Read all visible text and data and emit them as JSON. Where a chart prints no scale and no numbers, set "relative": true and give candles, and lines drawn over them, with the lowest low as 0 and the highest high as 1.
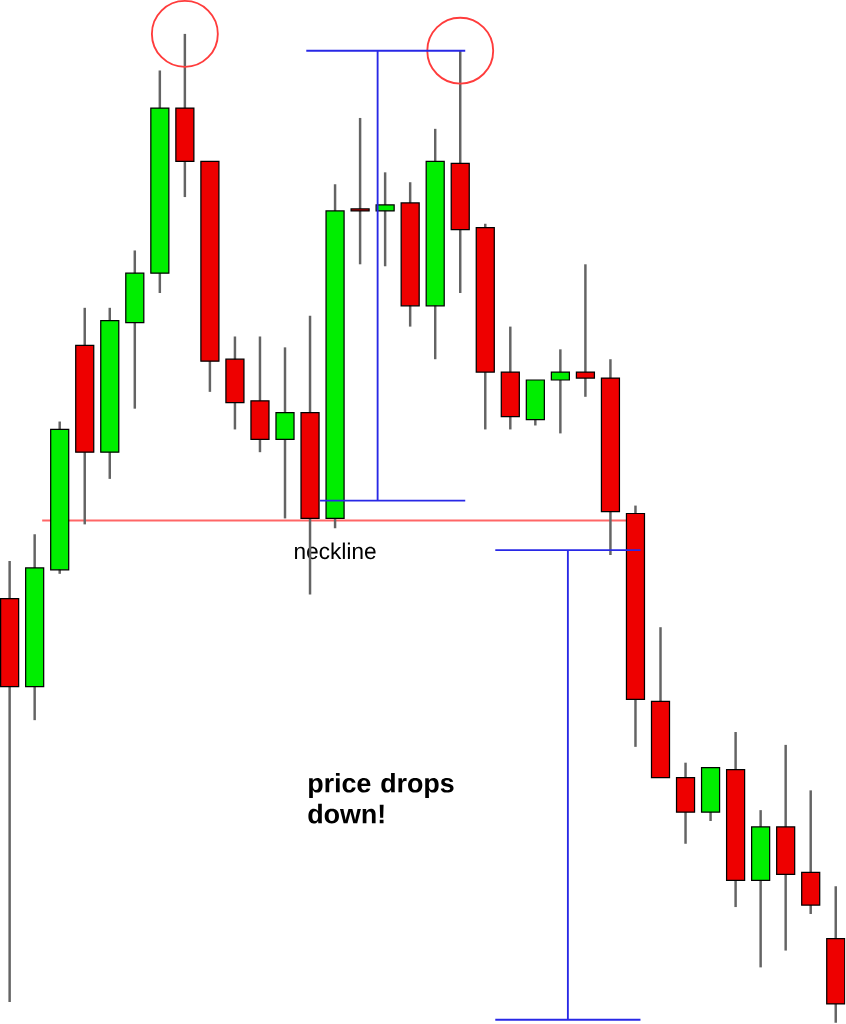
{
  "chart_data": {
    "type": "candlestick",
    "relative": true,
    "categories": [
      null,
      null,
      null,
      null,
      null,
      null,
      null,
      null,
      null,
      null,
      null,
      null,
      null,
      null,
      null,
      null,
      null,
      null,
      null,
      null,
      null,
      null,
      null,
      null,
      null,
      null,
      null,
      null,
      null,
      null,
      null,
      null,
      null,
      null
    ],
    "ohlc": [
      [
        0.429,
        0.467,
        0.021,
        0.34
      ],
      [
        0.34,
        0.494,
        0.306,
        0.46
      ],
      [
        0.458,
        0.608,
        0.454,
        0.6
      ],
      [
        0.685,
        0.723,
        0.504,
        0.577
      ],
      [
        0.577,
        0.723,
        0.55,
        0.71
      ],
      [
        0.708,
        0.781,
        0.621,
        0.758
      ],
      [
        0.758,
        0.963,
        0.738,
        0.925
      ],
      [
        0.925,
        1.0,
        0.835,
        0.871
      ],
      [
        0.871,
        0.871,
        0.638,
        0.669
      ],
      [
        0.671,
        0.694,
        0.6,
        0.627
      ],
      [
        0.629,
        0.694,
        0.577,
        0.59
      ],
      [
        0.59,
        0.683,
        0.51,
        0.617
      ],
      [
        0.617,
        0.715,
        0.433,
        0.51
      ],
      [
        0.51,
        0.848,
        0.5,
        0.821
      ],
      [
        0.823,
        0.915,
        0.767,
        0.821
      ],
      [
        0.821,
        0.86,
        0.765,
        0.827
      ],
      [
        0.829,
        0.85,
        0.704,
        0.725
      ],
      [
        0.725,
        0.904,
        0.671,
        0.871
      ],
      [
        0.869,
        0.983,
        0.738,
        0.802
      ],
      [
        0.804,
        0.808,
        0.6,
        0.658
      ],
      [
        0.658,
        0.704,
        0.6,
        0.613
      ],
      [
        0.61,
        0.65,
        0.604,
        0.65
      ],
      [
        0.65,
        0.681,
        0.596,
        0.658
      ],
      [
        0.658,
        0.767,
        0.633,
        0.652
      ],
      [
        0.652,
        0.671,
        0.473,
        0.517
      ],
      [
        0.515,
        0.523,
        0.279,
        0.327
      ],
      [
        0.325,
        0.4,
        0.248,
        0.248
      ],
      [
        0.248,
        0.263,
        0.181,
        0.213
      ],
      [
        0.213,
        0.258,
        0.204,
        0.258
      ],
      [
        0.256,
        0.294,
        0.117,
        0.144
      ],
      [
        0.144,
        0.215,
        0.056,
        0.198
      ],
      [
        0.198,
        0.281,
        0.073,
        0.15
      ],
      [
        0.152,
        0.235,
        0.11,
        0.119
      ],
      [
        0.085,
        0.138,
        0.0,
        0.019
      ]
    ],
    "colors": [
      "#ee0000",
      "#00ee00",
      "#00ee00",
      "#ee0000",
      "#00ee00",
      "#00ee00",
      "#00ee00",
      "#ee0000",
      "#ee0000",
      "#ee0000",
      "#ee0000",
      "#00ee00",
      "#ee0000",
      "#00ee00",
      "#ee0000",
      "#00ee00",
      "#ee0000",
      "#00ee00",
      "#ee0000",
      "#ee0000",
      "#ee0000",
      "#00ee00",
      "#00ee00",
      "#ee0000",
      "#ee0000",
      "#ee0000",
      "#ee0000",
      "#ee0000",
      "#00ee00",
      "#ee0000",
      "#00ee00",
      "#ee0000",
      "#ee0000",
      "#ee0000"
    ],
    "ref_lines": [
      {
        "axis": "y",
        "value": 0.508,
        "label": "neckline",
        "color": "#ff6666"
      }
    ],
    "annotations": [
      "price drops down!"
    ]
  }
}
